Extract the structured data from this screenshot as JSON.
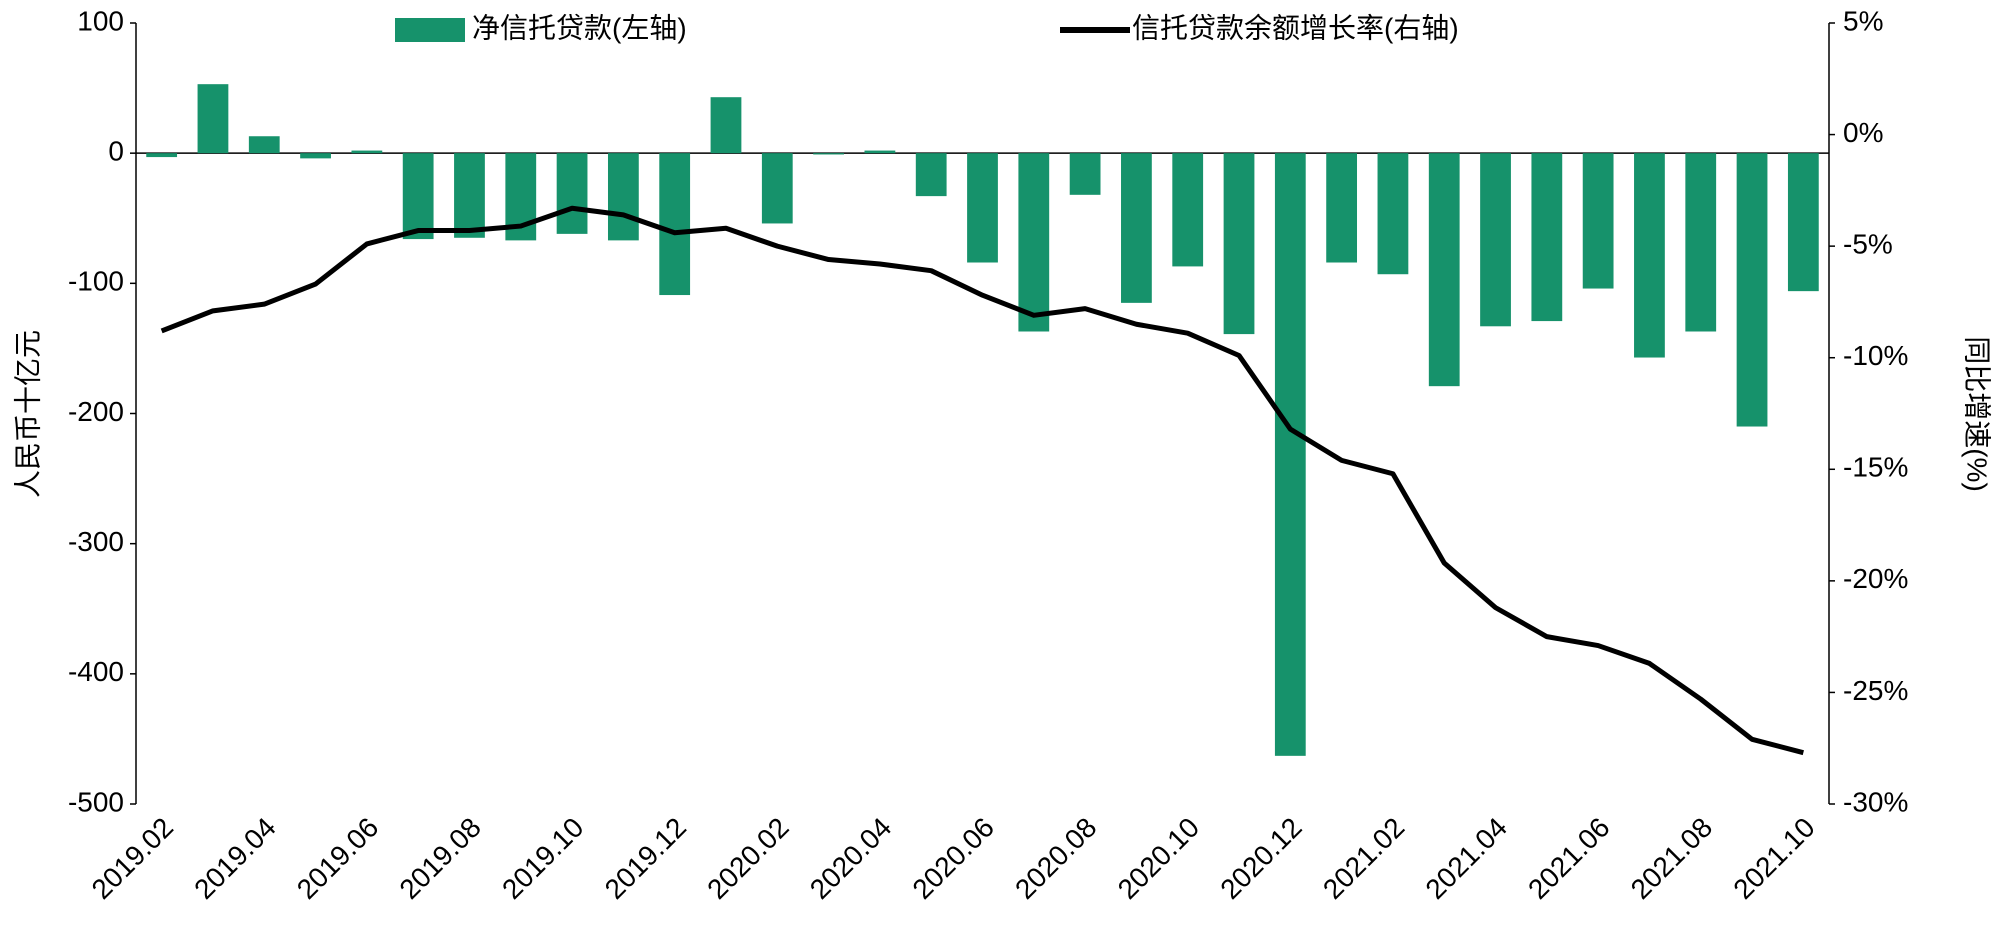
{
  "chart_data": {
    "type": "bar-line",
    "categories": [
      "2019.02",
      null,
      "2019.04",
      null,
      "2019.06",
      null,
      "2019.08",
      null,
      "2019.10",
      null,
      "2019.12",
      null,
      "2020.02",
      null,
      "2020.04",
      null,
      "2020.06",
      null,
      "2020.08",
      null,
      "2020.10",
      null,
      "2020.12",
      null,
      "2021.02",
      null,
      "2021.04",
      null,
      "2021.06",
      null,
      "2021.08",
      null,
      "2021.10"
    ],
    "series": [
      {
        "name": "净信托贷款(左轴)",
        "type": "bar",
        "color": "#16926b",
        "values": [
          -3,
          53,
          13,
          -4,
          2,
          -66,
          -65,
          -67,
          -62,
          -67,
          -109,
          43,
          -54,
          -1,
          2,
          -33,
          -84,
          -137,
          -32,
          -115,
          -87,
          -139,
          -463,
          -84,
          -93,
          -179,
          -133,
          -129,
          -104,
          -157,
          -137,
          -210,
          -106
        ]
      },
      {
        "name": "信托贷款余额增长率(右轴)",
        "type": "line",
        "axis": "y2",
        "color": "#000000",
        "values": [
          -8.8,
          -7.9,
          -7.6,
          -6.7,
          -4.9,
          -4.3,
          -4.3,
          -4.1,
          -3.3,
          -3.6,
          -4.4,
          -4.2,
          -5.0,
          -5.6,
          -5.8,
          -6.1,
          -7.2,
          -8.1,
          -7.8,
          -8.5,
          -8.9,
          -9.9,
          -13.2,
          -14.6,
          -15.2,
          -19.2,
          -21.2,
          -22.5,
          -22.9,
          -23.7,
          -25.3,
          -27.1,
          -27.7
        ]
      }
    ],
    "ylabel": "人民币十亿元",
    "y2label": "同比增速(%)",
    "ylim": [
      -500,
      100
    ],
    "yticks": [
      -500,
      -400,
      -300,
      -200,
      -100,
      0,
      100
    ],
    "y2lim": [
      -30,
      5
    ],
    "y2ticks": [
      {
        "value": -30,
        "label": "-30%"
      },
      {
        "value": -25,
        "label": "-25%"
      },
      {
        "value": -20,
        "label": "-20%"
      },
      {
        "value": -15,
        "label": "-15%"
      },
      {
        "value": -10,
        "label": "-10%"
      },
      {
        "value": -5,
        "label": "-5%"
      },
      {
        "value": 0,
        "label": "0%"
      },
      {
        "value": 5,
        "label": "5%"
      }
    ],
    "legend": "top"
  }
}
